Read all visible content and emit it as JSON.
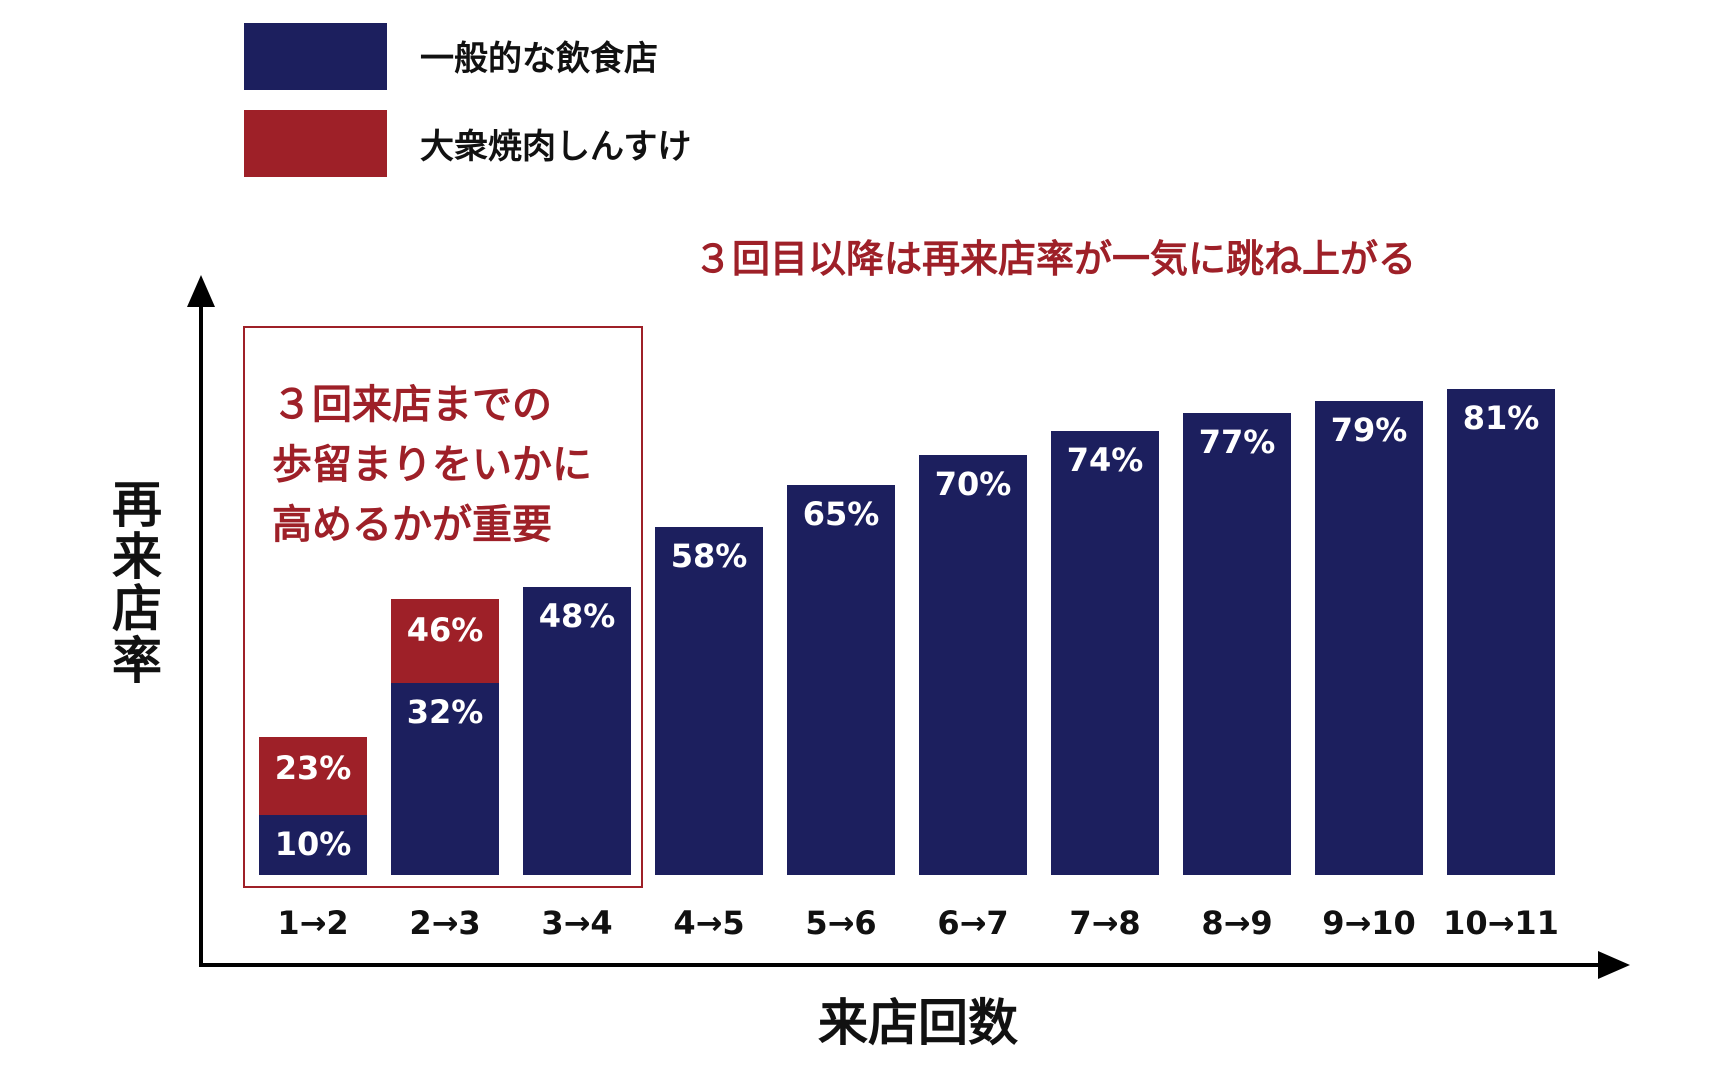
{
  "chart_data": {
    "type": "bar",
    "categories": [
      "1→2",
      "2→3",
      "3→4",
      "4→5",
      "5→6",
      "6→7",
      "7→8",
      "8→9",
      "9→10",
      "10→11"
    ],
    "series": [
      {
        "name": "一般的な飲食店",
        "values": [
          10,
          32,
          48,
          58,
          65,
          70,
          74,
          77,
          79,
          81
        ],
        "labels": [
          "10%",
          "32%",
          "48%",
          "58%",
          "65%",
          "70%",
          "74%",
          "77%",
          "79%",
          "81%"
        ]
      },
      {
        "name": "大衆焼肉しんすけ",
        "values": [
          23,
          46,
          null,
          null,
          null,
          null,
          null,
          null,
          null,
          null
        ],
        "labels": [
          "23%",
          "46%",
          "",
          "",
          "",
          "",
          "",
          "",
          "",
          ""
        ]
      }
    ],
    "xlabel": "来店回数",
    "ylabel": "再来店率",
    "ylim": [
      0,
      90
    ],
    "grid": false,
    "legend": "top-left",
    "callouts": [
      "３回目以降は再来店率が一気に跳ね上がる",
      "３回来店までの",
      "歩留まりをいかに",
      "高めるかが重要"
    ],
    "colors": {
      "general": "#1c1f5e",
      "shinsuke": "#9e2028",
      "accent_text": "#9e2028",
      "axis": "#000000"
    }
  }
}
